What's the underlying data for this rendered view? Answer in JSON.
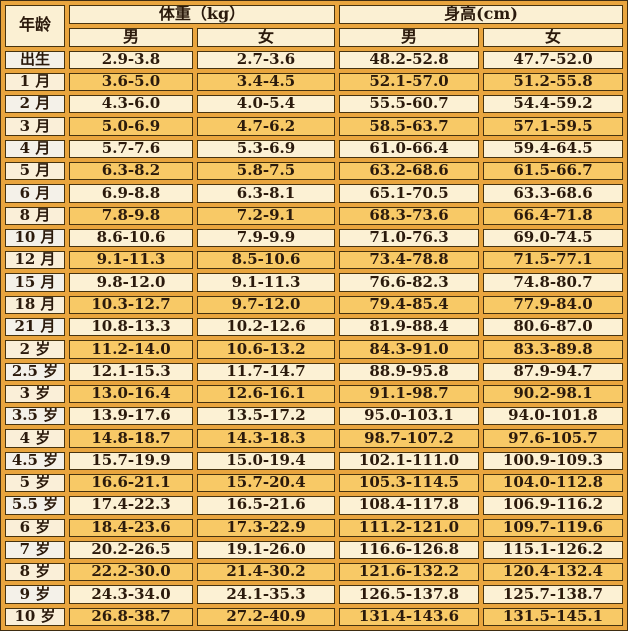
{
  "table": {
    "header": {
      "age": "年龄",
      "weight_group": "体重（kg）",
      "height_group": "身高(cm)",
      "male": "男",
      "female": "女"
    },
    "colors": {
      "gutter_orange": "#E9A53E",
      "row_cream": "#FCF1D4",
      "row_amber": "#F8C966",
      "age_cell_light": "#F4F1E9",
      "age_cell_cream": "#FAEFD8",
      "header_bg": "#FBF0D3",
      "cell_border": "#46330F",
      "text": "#2B1A0C"
    },
    "rows": [
      {
        "age": "出生",
        "weight_male": "2.9-3.8",
        "weight_female": "2.7-3.6",
        "height_male": "48.2-52.8",
        "height_female": "47.7-52.0"
      },
      {
        "age": "1 月",
        "weight_male": "3.6-5.0",
        "weight_female": "3.4-4.5",
        "height_male": "52.1-57.0",
        "height_female": "51.2-55.8"
      },
      {
        "age": "2 月",
        "weight_male": "4.3-6.0",
        "weight_female": "4.0-5.4",
        "height_male": "55.5-60.7",
        "height_female": "54.4-59.2"
      },
      {
        "age": "3 月",
        "weight_male": "5.0-6.9",
        "weight_female": "4.7-6.2",
        "height_male": "58.5-63.7",
        "height_female": "57.1-59.5"
      },
      {
        "age": "4 月",
        "weight_male": "5.7-7.6",
        "weight_female": "5.3-6.9",
        "height_male": "61.0-66.4",
        "height_female": "59.4-64.5"
      },
      {
        "age": "5 月",
        "weight_male": "6.3-8.2",
        "weight_female": "5.8-7.5",
        "height_male": "63.2-68.6",
        "height_female": "61.5-66.7"
      },
      {
        "age": "6 月",
        "weight_male": "6.9-8.8",
        "weight_female": "6.3-8.1",
        "height_male": "65.1-70.5",
        "height_female": "63.3-68.6"
      },
      {
        "age": "8 月",
        "weight_male": "7.8-9.8",
        "weight_female": "7.2-9.1",
        "height_male": "68.3-73.6",
        "height_female": "66.4-71.8"
      },
      {
        "age": "10 月",
        "weight_male": "8.6-10.6",
        "weight_female": "7.9-9.9",
        "height_male": "71.0-76.3",
        "height_female": "69.0-74.5"
      },
      {
        "age": "12 月",
        "weight_male": "9.1-11.3",
        "weight_female": "8.5-10.6",
        "height_male": "73.4-78.8",
        "height_female": "71.5-77.1"
      },
      {
        "age": "15 月",
        "weight_male": "9.8-12.0",
        "weight_female": "9.1-11.3",
        "height_male": "76.6-82.3",
        "height_female": "74.8-80.7"
      },
      {
        "age": "18 月",
        "weight_male": "10.3-12.7",
        "weight_female": "9.7-12.0",
        "height_male": "79.4-85.4",
        "height_female": "77.9-84.0"
      },
      {
        "age": "21 月",
        "weight_male": "10.8-13.3",
        "weight_female": "10.2-12.6",
        "height_male": "81.9-88.4",
        "height_female": "80.6-87.0"
      },
      {
        "age": "2 岁",
        "weight_male": "11.2-14.0",
        "weight_female": "10.6-13.2",
        "height_male": "84.3-91.0",
        "height_female": "83.3-89.8"
      },
      {
        "age": "2.5 岁",
        "weight_male": "12.1-15.3",
        "weight_female": "11.7-14.7",
        "height_male": "88.9-95.8",
        "height_female": "87.9-94.7"
      },
      {
        "age": "3 岁",
        "weight_male": "13.0-16.4",
        "weight_female": "12.6-16.1",
        "height_male": "91.1-98.7",
        "height_female": "90.2-98.1"
      },
      {
        "age": "3.5 岁",
        "weight_male": "13.9-17.6",
        "weight_female": "13.5-17.2",
        "height_male": "95.0-103.1",
        "height_female": "94.0-101.8"
      },
      {
        "age": "4 岁",
        "weight_male": "14.8-18.7",
        "weight_female": "14.3-18.3",
        "height_male": "98.7-107.2",
        "height_female": "97.6-105.7"
      },
      {
        "age": "4.5 岁",
        "weight_male": "15.7-19.9",
        "weight_female": "15.0-19.4",
        "height_male": "102.1-111.0",
        "height_female": "100.9-109.3"
      },
      {
        "age": "5 岁",
        "weight_male": "16.6-21.1",
        "weight_female": "15.7-20.4",
        "height_male": "105.3-114.5",
        "height_female": "104.0-112.8"
      },
      {
        "age": "5.5 岁",
        "weight_male": "17.4-22.3",
        "weight_female": "16.5-21.6",
        "height_male": "108.4-117.8",
        "height_female": "106.9-116.2"
      },
      {
        "age": "6 岁",
        "weight_male": "18.4-23.6",
        "weight_female": "17.3-22.9",
        "height_male": "111.2-121.0",
        "height_female": "109.7-119.6"
      },
      {
        "age": "7 岁",
        "weight_male": "20.2-26.5",
        "weight_female": "19.1-26.0",
        "height_male": "116.6-126.8",
        "height_female": "115.1-126.2"
      },
      {
        "age": "8 岁",
        "weight_male": "22.2-30.0",
        "weight_female": "21.4-30.2",
        "height_male": "121.6-132.2",
        "height_female": "120.4-132.4"
      },
      {
        "age": "9 岁",
        "weight_male": "24.3-34.0",
        "weight_female": "24.1-35.3",
        "height_male": "126.5-137.8",
        "height_female": "125.7-138.7"
      },
      {
        "age": "10 岁",
        "weight_male": "26.8-38.7",
        "weight_female": "27.2-40.9",
        "height_male": "131.4-143.6",
        "height_female": "131.5-145.1"
      }
    ]
  }
}
